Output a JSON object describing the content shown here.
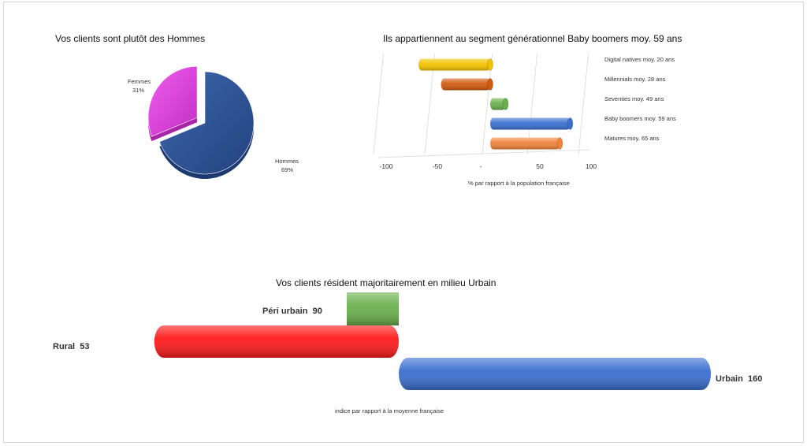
{
  "chart_data": [
    {
      "type": "pie",
      "title": "Vos clients sont plutôt des Hommes",
      "slices": [
        {
          "name": "Hommes",
          "value": 69,
          "label": "69%",
          "color": "#2f5597"
        },
        {
          "name": "Femmes",
          "value": 31,
          "label": "31%",
          "color": "#e040e0"
        }
      ]
    },
    {
      "type": "bar",
      "orientation": "horizontal",
      "title": "Ils appartiennent au segment générationnel Baby boomers moy. 59 ans",
      "xlabel": "% par rapport  à la population  française",
      "xlim": [
        -100,
        100
      ],
      "xticks": [
        "-100",
        "-50",
        "-",
        "50",
        "100"
      ],
      "categories": [
        "Digital natives moy. 20 ans",
        "Millennials moy. 28 ans",
        "Seventies moy. 49 ans",
        "Baby boomers moy. 59 ans",
        "Matures moy. 65 ans"
      ],
      "values": [
        -70,
        -48,
        15,
        78,
        68
      ],
      "colors": [
        "#f2c200",
        "#d05a10",
        "#6ab04c",
        "#3a6fd0",
        "#f0843a"
      ]
    },
    {
      "type": "bar",
      "orientation": "horizontal",
      "title": "Vos clients résident majoritairement en milieu Urbain",
      "xlabel": "indice  par rapport  à la moyenne française",
      "baseline": 100,
      "categories": [
        "Péri urbain",
        "Rural",
        "Urbain"
      ],
      "values": [
        90,
        53,
        160
      ],
      "colors": [
        "#6ab04c",
        "#ff1a1a",
        "#3a6fd0"
      ]
    }
  ]
}
